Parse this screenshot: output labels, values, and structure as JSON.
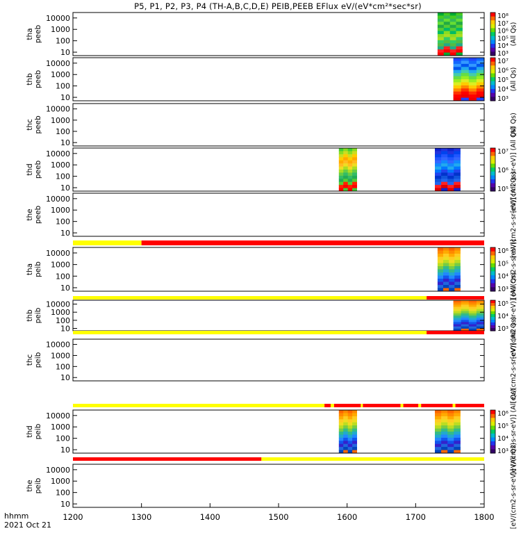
{
  "title": "P5, P1, P2, P3, P4 (TH-A,B,C,D,E) PEIB,PEEB EFlux eV/(eV*cm²*sec*sr)",
  "chart_data": {
    "type": "heatmap",
    "x_axis": {
      "ticks": [
        "1200",
        "1300",
        "1400",
        "1500",
        "1600",
        "1700",
        "1800"
      ],
      "range": [
        1200,
        1800
      ],
      "label_line1": "hhmm",
      "label_line2": "2021 Oct 21"
    },
    "panels": [
      {
        "label1": "tha",
        "label2": "peeb",
        "has_data": true,
        "cbar_label": "(All Qs)",
        "cbar_ticks": [
          "10⁸",
          "10⁷",
          "10⁶",
          "10⁵",
          "10⁴",
          "10³"
        ],
        "blocks": [
          {
            "x0": 1732,
            "x1": 1768,
            "scheme": "electron"
          }
        ]
      },
      {
        "label1": "thb",
        "label2": "peeb",
        "has_data": true,
        "cbar_label": "(All Qs)",
        "cbar_ticks": [
          "10⁷",
          "10⁶",
          "10⁵",
          "10⁴",
          "10³"
        ],
        "blocks": [
          {
            "x0": 1755,
            "x1": 1800,
            "scheme": "electron-hot"
          }
        ]
      },
      {
        "label1": "thc",
        "label2": "peeb",
        "has_data": false,
        "cbar_label": "(All Qs)",
        "cbar_ticks": [],
        "blocks": []
      },
      {
        "label1": "thd",
        "label2": "peeb",
        "has_data": true,
        "cbar_label": "[eV/(cm2-s-sr-eV)] (All Qs)",
        "cbar_ticks": [
          "10⁷",
          "10⁶",
          "10⁵"
        ],
        "blocks": [
          {
            "x0": 1588,
            "x1": 1614,
            "scheme": "warm"
          },
          {
            "x0": 1728,
            "x1": 1765,
            "scheme": "electron-cool"
          }
        ]
      },
      {
        "label1": "the",
        "label2": "peeb",
        "has_data": false,
        "cbar_label": "[eV/(cm2-s-sr-eV)] (All Qs)",
        "cbar_ticks": [],
        "blocks": []
      },
      {
        "label1": "tha",
        "label2": "peib",
        "has_data": true,
        "cbar_label": "[eV/(cm2-s-sr-eV)]",
        "cbar_ticks": [
          "10⁶",
          "10⁵",
          "10⁴",
          "10³"
        ],
        "blocks": [
          {
            "x0": 1732,
            "x1": 1765,
            "scheme": "ion"
          }
        ]
      },
      {
        "label1": "thb",
        "label2": "peib",
        "has_data": true,
        "cbar_label": "[eV/(cm2-s-sr-eV)] (All Qs)",
        "cbar_ticks": [
          "10⁵",
          "10⁴",
          "10³"
        ],
        "blocks": [
          {
            "x0": 1755,
            "x1": 1800,
            "scheme": "ion"
          }
        ]
      },
      {
        "label1": "thc",
        "label2": "peib",
        "has_data": false,
        "cbar_label": "[eV/(cm2-s-sr-eV)] (All Qs)",
        "cbar_ticks": [],
        "blocks": []
      },
      {
        "label1": "thd",
        "label2": "peib",
        "has_data": true,
        "cbar_label": "[eV/(cm2-s-sr-eV)] (All Qs)",
        "cbar_ticks": [
          "10⁶",
          "10⁵",
          "10⁴",
          "10³"
        ],
        "blocks": [
          {
            "x0": 1588,
            "x1": 1614,
            "scheme": "ion"
          },
          {
            "x0": 1728,
            "x1": 1765,
            "scheme": "ion"
          }
        ]
      },
      {
        "label1": "the",
        "label2": "peib",
        "has_data": false,
        "cbar_label": "[eV/(cm2-s-sr-eV)] (All Qs)",
        "cbar_ticks": [],
        "blocks": []
      }
    ],
    "y_ticks": [
      "10000",
      "1000",
      "100",
      "10"
    ],
    "y_range": [
      5,
      30000
    ],
    "y_scale": "log",
    "status_bars": [
      {
        "after_panel": 4,
        "segments": [
          {
            "x0": 1200,
            "x1": 1300,
            "color": "#ffff00"
          },
          {
            "x0": 1300,
            "x1": 1800,
            "color": "#ff0000"
          }
        ]
      },
      {
        "after_panel": 5,
        "segments": [
          {
            "x0": 1200,
            "x1": 1716,
            "color": "#ffff00"
          },
          {
            "x0": 1716,
            "x1": 1800,
            "color": "#ff0000"
          }
        ]
      },
      {
        "after_panel": 6,
        "segments": [
          {
            "x0": 1200,
            "x1": 1716,
            "color": "#ffff00"
          },
          {
            "x0": 1716,
            "x1": 1800,
            "color": "#ff0000"
          }
        ]
      },
      {
        "after_panel": 7,
        "segments": [
          {
            "x0": 1200,
            "x1": 1567,
            "color": "#ffff00"
          },
          {
            "x0": 1567,
            "x1": 1576,
            "color": "#ff0000"
          },
          {
            "x0": 1576,
            "x1": 1581,
            "color": "#ffff00"
          },
          {
            "x0": 1581,
            "x1": 1620,
            "color": "#ff0000"
          },
          {
            "x0": 1620,
            "x1": 1623,
            "color": "#ffff00"
          },
          {
            "x0": 1623,
            "x1": 1678,
            "color": "#ff0000"
          },
          {
            "x0": 1678,
            "x1": 1682,
            "color": "#ffff00"
          },
          {
            "x0": 1682,
            "x1": 1704,
            "color": "#ff0000"
          },
          {
            "x0": 1704,
            "x1": 1708,
            "color": "#ffff00"
          },
          {
            "x0": 1708,
            "x1": 1754,
            "color": "#ff0000"
          },
          {
            "x0": 1754,
            "x1": 1758,
            "color": "#ffff00"
          },
          {
            "x0": 1758,
            "x1": 1800,
            "color": "#ff0000"
          }
        ]
      },
      {
        "after_panel": 8,
        "segments": [
          {
            "x0": 1200,
            "x1": 1475,
            "color": "#ff0000"
          },
          {
            "x0": 1475,
            "x1": 1800,
            "color": "#ffff00"
          }
        ]
      }
    ]
  }
}
